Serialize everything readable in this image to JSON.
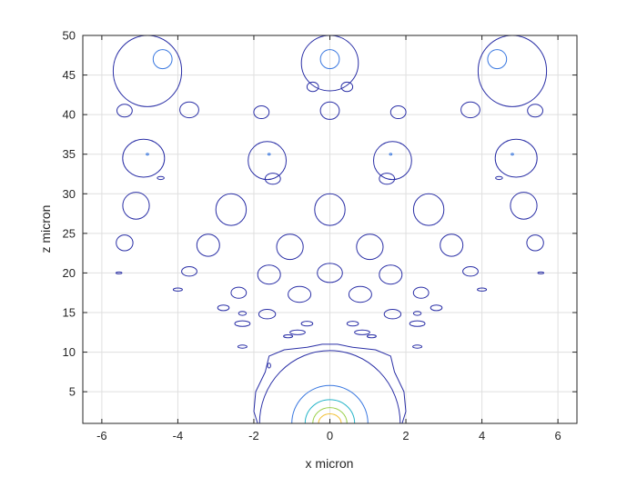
{
  "chart_data": {
    "type": "contour",
    "xlabel": "x micron",
    "ylabel": "z micron",
    "xlim": [
      -6.5,
      6.5
    ],
    "ylim": [
      1,
      50
    ],
    "x_ticks": [
      "-6",
      "-4",
      "-2",
      "0",
      "2",
      "4",
      "6"
    ],
    "y_ticks": [
      "5",
      "10",
      "15",
      "20",
      "25",
      "30",
      "35",
      "40",
      "45",
      "50"
    ],
    "grid": true,
    "line_colors": {
      "lowest": "#2a2fa6",
      "low": "#3a78e0",
      "mid": "#23b3c8",
      "high": "#9bd04a",
      "highest": "#f2c032"
    },
    "contours": [
      {
        "cx": 0,
        "cz": 1,
        "rx": 1.85,
        "rz": 9.2,
        "level": "lowest",
        "shape": "cap"
      },
      {
        "cx": 0,
        "cz": 1,
        "rx": 1.0,
        "rz": 4.8,
        "level": "low",
        "shape": "cap"
      },
      {
        "cx": 0,
        "cz": 1,
        "rx": 0.65,
        "rz": 3.0,
        "level": "mid",
        "shape": "cap"
      },
      {
        "cx": 0,
        "cz": 1,
        "rx": 0.45,
        "rz": 2.0,
        "level": "high",
        "shape": "cap"
      },
      {
        "cx": 0,
        "cz": 1,
        "rx": 0.3,
        "rz": 1.2,
        "level": "highest",
        "shape": "cap"
      },
      {
        "cx": -4.8,
        "cz": 45.5,
        "rx": 0.9,
        "rz": 4.5,
        "level": "lowest"
      },
      {
        "cx": 0,
        "cz": 46.5,
        "rx": 0.75,
        "rz": 3.5,
        "level": "lowest"
      },
      {
        "cx": 4.8,
        "cz": 45.5,
        "rx": 0.9,
        "rz": 4.5,
        "level": "lowest"
      },
      {
        "cx": -4.4,
        "cz": 47,
        "rx": 0.25,
        "rz": 1.2,
        "level": "low"
      },
      {
        "cx": 0,
        "cz": 47,
        "rx": 0.25,
        "rz": 1.2,
        "level": "low"
      },
      {
        "cx": 4.4,
        "cz": 47,
        "rx": 0.25,
        "rz": 1.2,
        "level": "low"
      },
      {
        "cx": -0.45,
        "cz": 43.5,
        "rx": 0.15,
        "rz": 0.6,
        "level": "lowest"
      },
      {
        "cx": 0.45,
        "cz": 43.5,
        "rx": 0.15,
        "rz": 0.6,
        "level": "lowest"
      },
      {
        "cx": -5.4,
        "cz": 40.5,
        "rx": 0.2,
        "rz": 0.8,
        "level": "lowest"
      },
      {
        "cx": -3.7,
        "cz": 40.6,
        "rx": 0.25,
        "rz": 1.0,
        "level": "lowest"
      },
      {
        "cx": -1.8,
        "cz": 40.3,
        "rx": 0.2,
        "rz": 0.8,
        "level": "lowest"
      },
      {
        "cx": 0,
        "cz": 40.5,
        "rx": 0.25,
        "rz": 1.1,
        "level": "lowest"
      },
      {
        "cx": 1.8,
        "cz": 40.3,
        "rx": 0.2,
        "rz": 0.8,
        "level": "lowest"
      },
      {
        "cx": 3.7,
        "cz": 40.6,
        "rx": 0.25,
        "rz": 1.0,
        "level": "lowest"
      },
      {
        "cx": 5.4,
        "cz": 40.5,
        "rx": 0.2,
        "rz": 0.8,
        "level": "lowest"
      },
      {
        "cx": -4.9,
        "cz": 34.5,
        "rx": 0.55,
        "rz": 2.4,
        "level": "lowest"
      },
      {
        "cx": -1.65,
        "cz": 34.2,
        "rx": 0.5,
        "rz": 2.4,
        "level": "lowest"
      },
      {
        "cx": 1.65,
        "cz": 34.2,
        "rx": 0.5,
        "rz": 2.4,
        "level": "lowest"
      },
      {
        "cx": 4.9,
        "cz": 34.5,
        "rx": 0.55,
        "rz": 2.4,
        "level": "lowest"
      },
      {
        "cx": -4.8,
        "cz": 35.0,
        "rx": 0.03,
        "rz": 0.12,
        "level": "low"
      },
      {
        "cx": -1.6,
        "cz": 35.0,
        "rx": 0.03,
        "rz": 0.12,
        "level": "low"
      },
      {
        "cx": 1.6,
        "cz": 35.0,
        "rx": 0.03,
        "rz": 0.12,
        "level": "low"
      },
      {
        "cx": 4.8,
        "cz": 35.0,
        "rx": 0.03,
        "rz": 0.12,
        "level": "low"
      },
      {
        "cx": -4.45,
        "cz": 32.0,
        "rx": 0.09,
        "rz": 0.2,
        "level": "lowest"
      },
      {
        "cx": 4.45,
        "cz": 32.0,
        "rx": 0.09,
        "rz": 0.2,
        "level": "lowest"
      },
      {
        "cx": -1.5,
        "cz": 31.9,
        "rx": 0.2,
        "rz": 0.7,
        "level": "lowest"
      },
      {
        "cx": 1.5,
        "cz": 31.9,
        "rx": 0.2,
        "rz": 0.7,
        "level": "lowest"
      },
      {
        "cx": -5.1,
        "cz": 28.5,
        "rx": 0.35,
        "rz": 1.7,
        "level": "lowest"
      },
      {
        "cx": -2.6,
        "cz": 28.0,
        "rx": 0.4,
        "rz": 2.0,
        "level": "lowest"
      },
      {
        "cx": 0,
        "cz": 28.0,
        "rx": 0.4,
        "rz": 2.0,
        "level": "lowest"
      },
      {
        "cx": 2.6,
        "cz": 28.0,
        "rx": 0.4,
        "rz": 2.0,
        "level": "lowest"
      },
      {
        "cx": 5.1,
        "cz": 28.5,
        "rx": 0.35,
        "rz": 1.7,
        "level": "lowest"
      },
      {
        "cx": -5.4,
        "cz": 23.8,
        "rx": 0.22,
        "rz": 1.0,
        "level": "lowest"
      },
      {
        "cx": -3.2,
        "cz": 23.5,
        "rx": 0.3,
        "rz": 1.4,
        "level": "lowest"
      },
      {
        "cx": -1.05,
        "cz": 23.3,
        "rx": 0.35,
        "rz": 1.6,
        "level": "lowest"
      },
      {
        "cx": 1.05,
        "cz": 23.3,
        "rx": 0.35,
        "rz": 1.6,
        "level": "lowest"
      },
      {
        "cx": 3.2,
        "cz": 23.5,
        "rx": 0.3,
        "rz": 1.4,
        "level": "lowest"
      },
      {
        "cx": 5.4,
        "cz": 23.8,
        "rx": 0.22,
        "rz": 1.0,
        "level": "lowest"
      },
      {
        "cx": -5.55,
        "cz": 20.0,
        "rx": 0.08,
        "rz": 0.12,
        "level": "lowest"
      },
      {
        "cx": -3.7,
        "cz": 20.2,
        "rx": 0.2,
        "rz": 0.6,
        "level": "lowest"
      },
      {
        "cx": -1.6,
        "cz": 19.8,
        "rx": 0.3,
        "rz": 1.2,
        "level": "lowest"
      },
      {
        "cx": 0,
        "cz": 20.0,
        "rx": 0.33,
        "rz": 1.2,
        "level": "lowest"
      },
      {
        "cx": 1.6,
        "cz": 19.8,
        "rx": 0.3,
        "rz": 1.2,
        "level": "lowest"
      },
      {
        "cx": 3.7,
        "cz": 20.2,
        "rx": 0.2,
        "rz": 0.6,
        "level": "lowest"
      },
      {
        "cx": 5.55,
        "cz": 20.0,
        "rx": 0.08,
        "rz": 0.12,
        "level": "lowest"
      },
      {
        "cx": -4.0,
        "cz": 17.9,
        "rx": 0.12,
        "rz": 0.2,
        "level": "lowest"
      },
      {
        "cx": 4.0,
        "cz": 17.9,
        "rx": 0.12,
        "rz": 0.2,
        "level": "lowest"
      },
      {
        "cx": -2.4,
        "cz": 17.5,
        "rx": 0.2,
        "rz": 0.7,
        "level": "lowest"
      },
      {
        "cx": -0.8,
        "cz": 17.3,
        "rx": 0.3,
        "rz": 1.0,
        "level": "lowest"
      },
      {
        "cx": 0.8,
        "cz": 17.3,
        "rx": 0.3,
        "rz": 1.0,
        "level": "lowest"
      },
      {
        "cx": 2.4,
        "cz": 17.5,
        "rx": 0.2,
        "rz": 0.7,
        "level": "lowest"
      },
      {
        "cx": -2.8,
        "cz": 15.6,
        "rx": 0.15,
        "rz": 0.35,
        "level": "lowest"
      },
      {
        "cx": 2.8,
        "cz": 15.6,
        "rx": 0.15,
        "rz": 0.35,
        "level": "lowest"
      },
      {
        "cx": -1.65,
        "cz": 14.8,
        "rx": 0.22,
        "rz": 0.6,
        "level": "lowest"
      },
      {
        "cx": 1.65,
        "cz": 14.8,
        "rx": 0.22,
        "rz": 0.6,
        "level": "lowest"
      },
      {
        "cx": -2.3,
        "cz": 13.6,
        "rx": 0.2,
        "rz": 0.35,
        "level": "lowest"
      },
      {
        "cx": 2.3,
        "cz": 13.6,
        "rx": 0.2,
        "rz": 0.35,
        "level": "lowest"
      },
      {
        "cx": -2.3,
        "cz": 14.9,
        "rx": 0.1,
        "rz": 0.25,
        "level": "lowest"
      },
      {
        "cx": 2.3,
        "cz": 14.9,
        "rx": 0.1,
        "rz": 0.25,
        "level": "lowest"
      },
      {
        "cx": -0.6,
        "cz": 13.6,
        "rx": 0.15,
        "rz": 0.3,
        "level": "lowest"
      },
      {
        "cx": 0.6,
        "cz": 13.6,
        "rx": 0.15,
        "rz": 0.3,
        "level": "lowest"
      },
      {
        "cx": -0.85,
        "cz": 12.5,
        "rx": 0.2,
        "rz": 0.3,
        "level": "lowest"
      },
      {
        "cx": 0.85,
        "cz": 12.5,
        "rx": 0.2,
        "rz": 0.3,
        "level": "lowest"
      },
      {
        "cx": -1.1,
        "cz": 12.0,
        "rx": 0.12,
        "rz": 0.18,
        "level": "lowest"
      },
      {
        "cx": 1.1,
        "cz": 12.0,
        "rx": 0.12,
        "rz": 0.18,
        "level": "lowest"
      },
      {
        "cx": -2.3,
        "cz": 10.7,
        "rx": 0.12,
        "rz": 0.2,
        "level": "lowest"
      },
      {
        "cx": 2.3,
        "cz": 10.7,
        "rx": 0.12,
        "rz": 0.2,
        "level": "lowest"
      },
      {
        "cx": -1.6,
        "cz": 8.3,
        "rx": 0.04,
        "rz": 0.3,
        "level": "lowest"
      }
    ],
    "envelope_level": "lowest"
  }
}
